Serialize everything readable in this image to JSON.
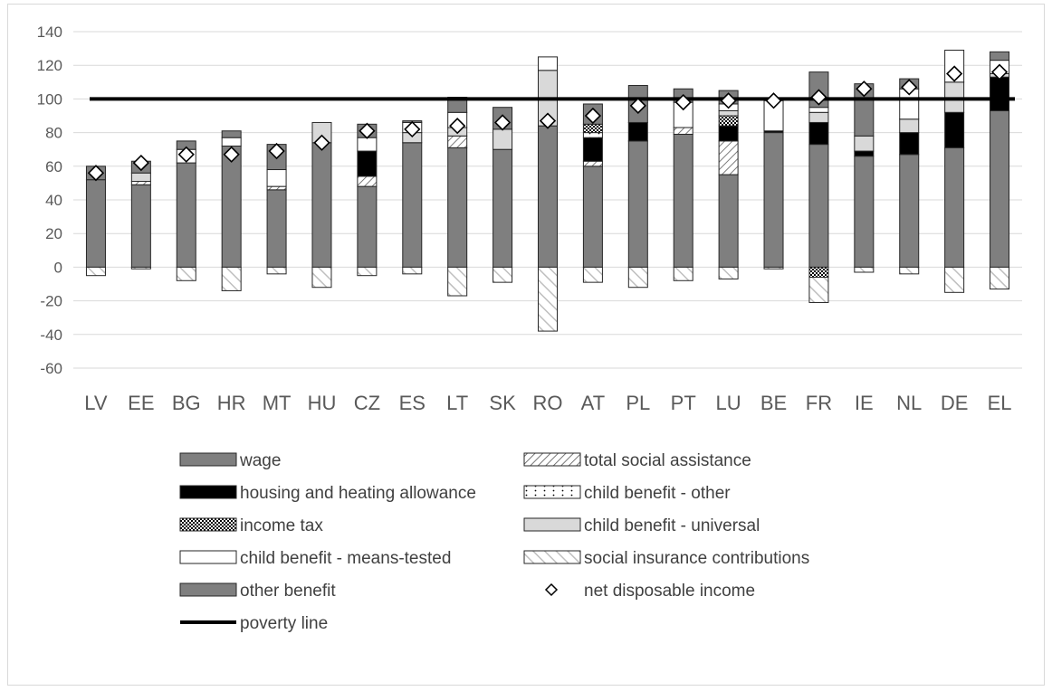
{
  "chart_data": {
    "type": "bar",
    "stacked": true,
    "ylim": [
      -60,
      140
    ],
    "yticks": [
      -60,
      -40,
      -20,
      0,
      20,
      40,
      60,
      80,
      100,
      120,
      140
    ],
    "grid": true,
    "legend_position": "bottom",
    "categories": [
      "LV",
      "EE",
      "BG",
      "HR",
      "MT",
      "HU",
      "CZ",
      "ES",
      "LT",
      "SK",
      "RO",
      "AT",
      "PL",
      "PT",
      "LU",
      "BE",
      "FR",
      "IE",
      "NL",
      "DE",
      "EL"
    ],
    "series": [
      {
        "name": "wage",
        "key": "wage",
        "values": [
          52,
          49,
          62,
          72,
          46,
          74,
          48,
          74,
          71,
          70,
          84,
          60,
          75,
          79,
          55,
          80,
          73,
          66,
          67,
          71,
          93
        ]
      },
      {
        "name": "total social assistance",
        "key": "social",
        "values": [
          0,
          2,
          0,
          0,
          2,
          0,
          6,
          0,
          7,
          0,
          0,
          3,
          0,
          4,
          20,
          0,
          0,
          0,
          0,
          0,
          0
        ]
      },
      {
        "name": "housing and heating allowance",
        "key": "housing",
        "values": [
          0,
          0,
          0,
          0,
          0,
          0,
          15,
          0,
          0,
          0,
          0,
          14,
          11,
          0,
          9,
          1,
          13,
          3,
          13,
          21,
          20
        ]
      },
      {
        "name": "child benefit - other",
        "key": "cb_other",
        "values": [
          0,
          0,
          0,
          0,
          0,
          0,
          0,
          0,
          0,
          0,
          0,
          3,
          0,
          0,
          0,
          0,
          0,
          0,
          0,
          0,
          0
        ]
      },
      {
        "name": "income tax",
        "key": "tax_pos",
        "values": [
          0,
          0,
          0,
          0,
          0,
          0,
          0,
          0,
          0,
          0,
          0,
          5,
          0,
          0,
          6,
          0,
          0,
          0,
          0,
          0,
          0
        ]
      },
      {
        "name": "child benefit - universal",
        "key": "cb_univ",
        "values": [
          0,
          5,
          0,
          0,
          0,
          12,
          0,
          6,
          5,
          12,
          33,
          0,
          0,
          0,
          3,
          0,
          6,
          9,
          8,
          18,
          2
        ]
      },
      {
        "name": "child benefit - means-tested",
        "key": "cb_means",
        "values": [
          0,
          0,
          8,
          5,
          10,
          0,
          8,
          6,
          9,
          0,
          8,
          0,
          0,
          15,
          4,
          18,
          3,
          0,
          18,
          19,
          8
        ]
      },
      {
        "name": "other benefit",
        "key": "other",
        "values": [
          8,
          7,
          5,
          4,
          15,
          0,
          8,
          1,
          9,
          13,
          0,
          12,
          22,
          8,
          8,
          0,
          21,
          31,
          6,
          0,
          5
        ]
      }
    ],
    "negatives": [
      {
        "name": "income tax",
        "key": "tax_neg",
        "values": [
          0,
          0,
          0,
          0,
          0,
          0,
          0,
          0,
          0,
          0,
          0,
          0,
          0,
          0,
          0,
          0,
          -6,
          0,
          0,
          0,
          0
        ]
      },
      {
        "name": "social insurance contributions",
        "key": "sic",
        "values": [
          -5,
          -1,
          -8,
          -14,
          -4,
          -12,
          -5,
          -4,
          -17,
          -9,
          -38,
          -9,
          -12,
          -8,
          -7,
          -1,
          -15,
          -3,
          -4,
          -15,
          -13
        ]
      }
    ],
    "net_disposable_income": {
      "name": "net disposable income",
      "values": [
        56,
        62,
        67,
        67,
        69,
        74,
        81,
        82,
        84,
        86,
        87,
        90,
        96,
        98,
        99,
        99,
        101,
        106,
        107,
        115,
        116
      ]
    },
    "poverty_line": {
      "name": "poverty line",
      "value": 100
    }
  },
  "legend": [
    {
      "label": "wage",
      "style": "dark"
    },
    {
      "label": "total social assistance",
      "style": "diag"
    },
    {
      "label": "housing and heating allowance",
      "style": "black"
    },
    {
      "label": "child benefit - other",
      "style": "dots"
    },
    {
      "label": "income tax",
      "style": "checker"
    },
    {
      "label": "child benefit - universal",
      "style": "light"
    },
    {
      "label": "child benefit - means-tested",
      "style": "white"
    },
    {
      "label": "social insurance contributions",
      "style": "bigdiag"
    },
    {
      "label": "other benefit",
      "style": "dark"
    },
    {
      "label": "net disposable income",
      "style": "diamond"
    },
    {
      "label": "poverty line",
      "style": "line"
    }
  ],
  "colors": {
    "dark": "#7f7f7f",
    "light": "#d9d9d9",
    "black": "#000000",
    "grid": "#d9d9d9",
    "text": "#595959"
  }
}
